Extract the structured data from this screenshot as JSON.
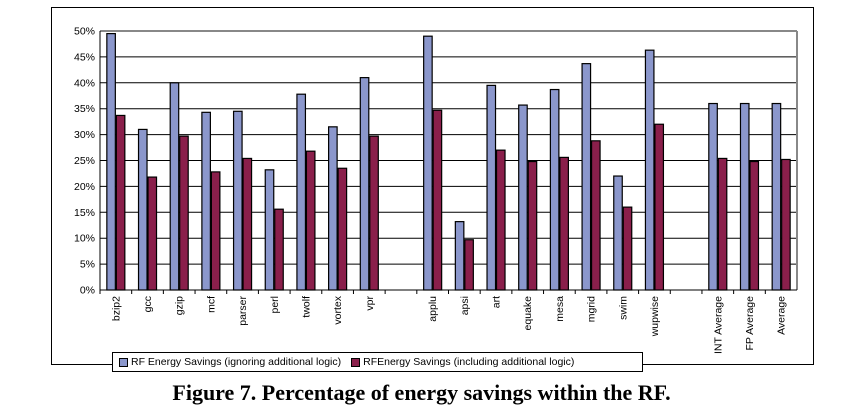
{
  "chart_data": {
    "type": "bar",
    "categories": [
      "bzip2",
      "gcc",
      "gzip",
      "mcf",
      "parser",
      "perl",
      "twolf",
      "vortex",
      "vpr",
      "",
      "applu",
      "apsi",
      "art",
      "equake",
      "mesa",
      "mgrid",
      "swim",
      "wupwise",
      "",
      "INT Average",
      "FP Average",
      "Average"
    ],
    "series": [
      {
        "name": "RF Energy Savings (ignoring additional logic)",
        "color": "#8b97cc",
        "values": [
          49.5,
          31,
          40,
          34.3,
          34.5,
          23.2,
          37.8,
          31.5,
          41,
          null,
          49,
          13.2,
          39.5,
          35.7,
          38.7,
          43.7,
          22,
          46.3,
          null,
          36,
          36,
          36
        ]
      },
      {
        "name": "RFEnergy Savings (including additional logic)",
        "color": "#8a1f4b",
        "values": [
          33.7,
          21.8,
          29.7,
          22.8,
          25.4,
          15.6,
          26.8,
          23.5,
          29.7,
          null,
          34.7,
          9.7,
          27,
          24.8,
          25.6,
          28.8,
          16,
          32,
          null,
          25.4,
          24.8,
          25.2
        ]
      }
    ],
    "ylim": [
      0,
      50
    ],
    "yticks": [
      0,
      5,
      10,
      15,
      20,
      25,
      30,
      35,
      40,
      45,
      50
    ],
    "ytick_suffix": "%",
    "grid": true,
    "legend_position": "bottom",
    "caption": "Figure 7. Percentage of energy savings within the RF."
  }
}
